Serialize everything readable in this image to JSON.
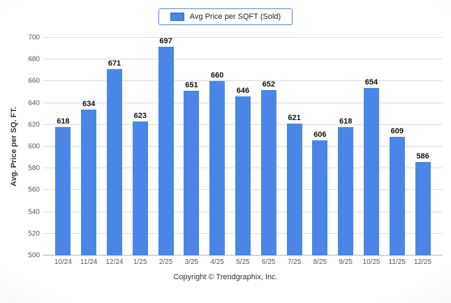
{
  "chart_data": {
    "type": "bar",
    "categories": [
      "10/24",
      "11/24",
      "12/24",
      "1/25",
      "2/25",
      "3/25",
      "4/25",
      "5/25",
      "6/25",
      "7/25",
      "8/25",
      "9/25",
      "10/25",
      "11/25",
      "12/25"
    ],
    "values": [
      618,
      634,
      671,
      623,
      697,
      651,
      660,
      646,
      652,
      621,
      606,
      618,
      654,
      609,
      586
    ],
    "title": "",
    "xlabel": "",
    "ylabel": "Avg. Price per SQ. FT.",
    "ylim": [
      500,
      700
    ],
    "ytick_step": 20,
    "grid": true,
    "legend_position": "top",
    "bar_color": "#4a86e8"
  },
  "legend": {
    "label": "Avg Price per SQFT (Sold)"
  },
  "footer": {
    "copyright": "Copyright © Trendgraphix, Inc."
  },
  "colors": {
    "bar": "#4a86e8",
    "legend_border": "#4a86e8"
  }
}
